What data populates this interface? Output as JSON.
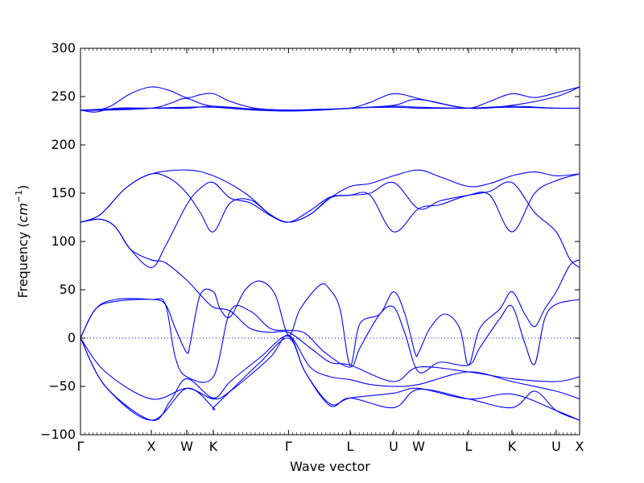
{
  "chart_data": {
    "type": "line",
    "xlabel": "Wave vector",
    "ylabel_text": "Frequency (",
    "ylabel_unit": "cm",
    "ylabel_exp": "−1",
    "ylabel_close": ")",
    "ylim": [
      -100,
      300
    ],
    "yticks": [
      -100,
      -50,
      0,
      50,
      100,
      150,
      200,
      250,
      300
    ],
    "ytick_labels": [
      "−100",
      "−50",
      "0",
      "50",
      "100",
      "150",
      "200",
      "250",
      "300"
    ],
    "xlim": [
      0,
      1
    ],
    "xticks": [
      {
        "label": "Γ",
        "x": 0.0
      },
      {
        "label": "X",
        "x": 0.1419
      },
      {
        "label": "W",
        "x": 0.2129
      },
      {
        "label": "K",
        "x": 0.2661
      },
      {
        "label": "Γ",
        "x": 0.4167
      },
      {
        "label": "L",
        "x": 0.5403
      },
      {
        "label": "U",
        "x": 0.6274
      },
      {
        "label": "W",
        "x": 0.6774
      },
      {
        "label": "L",
        "x": 0.7774
      },
      {
        "label": "K",
        "x": 0.8645
      },
      {
        "label": "U",
        "x": 0.9532
      },
      {
        "label": "X",
        "x": 1.0
      }
    ],
    "zero_line": 0,
    "line_color": "#0000ff",
    "series": [
      {
        "points": [
          [
            0,
            236
          ],
          [
            0.03,
            234
          ],
          [
            0.07,
            238
          ],
          [
            0.1419,
            238
          ],
          [
            0.2129,
            238
          ],
          [
            0.2661,
            240
          ],
          [
            0.35,
            237
          ],
          [
            0.4167,
            236
          ],
          [
            0.48,
            236
          ],
          [
            0.5403,
            238
          ],
          [
            0.6274,
            240
          ],
          [
            0.6774,
            239
          ],
          [
            0.7774,
            238
          ],
          [
            0.8645,
            240
          ],
          [
            0.9532,
            238
          ],
          [
            1,
            238
          ]
        ]
      },
      {
        "points": [
          [
            0,
            236
          ],
          [
            0.05,
            237
          ],
          [
            0.1419,
            238
          ],
          [
            0.2129,
            239
          ],
          [
            0.2661,
            239
          ],
          [
            0.35,
            236
          ],
          [
            0.4167,
            235
          ],
          [
            0.48,
            236
          ],
          [
            0.5403,
            238
          ],
          [
            0.6274,
            239
          ],
          [
            0.6774,
            238
          ],
          [
            0.7774,
            238
          ],
          [
            0.8645,
            239
          ],
          [
            0.9532,
            238
          ],
          [
            1,
            238
          ]
        ]
      },
      {
        "points": [
          [
            0,
            236
          ],
          [
            0.03,
            236
          ],
          [
            0.06,
            240
          ],
          [
            0.1,
            253
          ],
          [
            0.1419,
            260
          ],
          [
            0.18,
            256
          ],
          [
            0.2129,
            249
          ],
          [
            0.24,
            252
          ],
          [
            0.2661,
            253
          ],
          [
            0.3,
            245
          ],
          [
            0.35,
            238
          ],
          [
            0.4167,
            236
          ],
          [
            0.48,
            237
          ],
          [
            0.5403,
            238
          ],
          [
            0.58,
            244
          ],
          [
            0.6274,
            253
          ],
          [
            0.6774,
            248
          ],
          [
            0.72,
            243
          ],
          [
            0.7774,
            238
          ],
          [
            0.82,
            245
          ],
          [
            0.8645,
            253
          ],
          [
            0.91,
            249
          ],
          [
            0.9532,
            254
          ],
          [
            1,
            260
          ]
        ]
      },
      {
        "points": [
          [
            0,
            236
          ],
          [
            0.05,
            236
          ],
          [
            0.1419,
            238
          ],
          [
            0.18,
            243
          ],
          [
            0.2129,
            248
          ],
          [
            0.2661,
            240
          ],
          [
            0.4167,
            236
          ],
          [
            0.5403,
            238
          ],
          [
            0.6274,
            241
          ],
          [
            0.6774,
            247
          ],
          [
            0.7774,
            238
          ],
          [
            0.8645,
            241
          ],
          [
            0.9532,
            250
          ],
          [
            1,
            260
          ]
        ]
      },
      {
        "points": [
          [
            0,
            120
          ],
          [
            0.04,
            128
          ],
          [
            0.09,
            155
          ],
          [
            0.1419,
            170
          ],
          [
            0.2129,
            174
          ],
          [
            0.2661,
            168
          ],
          [
            0.33,
            150
          ],
          [
            0.38,
            128
          ],
          [
            0.4167,
            120
          ],
          [
            0.46,
            128
          ],
          [
            0.5,
            145
          ],
          [
            0.5403,
            157
          ],
          [
            0.58,
            160
          ],
          [
            0.6274,
            168
          ],
          [
            0.6774,
            174
          ],
          [
            0.72,
            167
          ],
          [
            0.7774,
            157
          ],
          [
            0.82,
            160
          ],
          [
            0.8645,
            168
          ],
          [
            0.91,
            172
          ],
          [
            0.9532,
            168
          ],
          [
            1,
            170
          ]
        ]
      },
      {
        "points": [
          [
            0,
            120
          ],
          [
            0.04,
            128
          ],
          [
            0.09,
            155
          ],
          [
            0.1419,
            170
          ],
          [
            0.18,
            165
          ],
          [
            0.2129,
            150
          ],
          [
            0.24,
            130
          ],
          [
            0.2661,
            110
          ],
          [
            0.3,
            140
          ],
          [
            0.34,
            143
          ],
          [
            0.38,
            128
          ],
          [
            0.4167,
            120
          ],
          [
            0.46,
            128
          ],
          [
            0.5,
            145
          ],
          [
            0.5403,
            148
          ],
          [
            0.58,
            148
          ],
          [
            0.6274,
            110
          ],
          [
            0.6774,
            134
          ],
          [
            0.72,
            138
          ],
          [
            0.7774,
            148
          ],
          [
            0.82,
            148
          ],
          [
            0.8645,
            110
          ],
          [
            0.91,
            150
          ],
          [
            0.9532,
            163
          ],
          [
            1,
            170
          ]
        ]
      },
      {
        "points": [
          [
            0,
            120
          ],
          [
            0.04,
            123
          ],
          [
            0.07,
            115
          ],
          [
            0.1,
            92
          ],
          [
            0.1419,
            73
          ],
          [
            0.17,
            95
          ],
          [
            0.2129,
            138
          ],
          [
            0.24,
            155
          ],
          [
            0.2661,
            161
          ],
          [
            0.3,
            145
          ],
          [
            0.34,
            140
          ],
          [
            0.38,
            127
          ],
          [
            0.4167,
            120
          ],
          [
            0.46,
            132
          ],
          [
            0.5,
            146
          ],
          [
            0.5403,
            148
          ],
          [
            0.58,
            150
          ],
          [
            0.6274,
            161
          ],
          [
            0.6774,
            134
          ],
          [
            0.72,
            142
          ],
          [
            0.7774,
            148
          ],
          [
            0.82,
            152
          ],
          [
            0.8645,
            161
          ],
          [
            0.91,
            130
          ],
          [
            0.9532,
            110
          ],
          [
            0.98,
            82
          ],
          [
            1,
            73
          ]
        ]
      },
      {
        "points": [
          [
            0,
            120
          ],
          [
            0.04,
            123
          ],
          [
            0.07,
            115
          ],
          [
            0.1,
            92
          ],
          [
            0.1419,
            81
          ],
          [
            0.17,
            78
          ],
          [
            0.2129,
            60
          ],
          [
            0.24,
            45
          ],
          [
            0.2661,
            32
          ],
          [
            0.3,
            28
          ],
          [
            0.34,
            10
          ],
          [
            0.38,
            6
          ],
          [
            0.4167,
            6
          ],
          [
            0.46,
            -10
          ],
          [
            0.5,
            -25
          ],
          [
            0.5403,
            -28
          ],
          [
            0.6274,
            -45
          ],
          [
            0.6774,
            -30
          ],
          [
            0.7774,
            -35
          ],
          [
            0.8645,
            -42
          ],
          [
            0.9532,
            -45
          ],
          [
            1,
            -40
          ]
        ]
      },
      {
        "points": [
          [
            0,
            0
          ],
          [
            0.03,
            30
          ],
          [
            0.07,
            38
          ],
          [
            0.1419,
            40
          ],
          [
            0.17,
            35
          ],
          [
            0.19,
            10
          ],
          [
            0.2129,
            -15
          ],
          [
            0.22,
            -5
          ],
          [
            0.24,
            45
          ],
          [
            0.2661,
            48
          ],
          [
            0.28,
            30
          ],
          [
            0.3,
            22
          ],
          [
            0.33,
            50
          ],
          [
            0.36,
            59
          ],
          [
            0.39,
            45
          ],
          [
            0.4167,
            3
          ],
          [
            0.44,
            30
          ],
          [
            0.48,
            55
          ],
          [
            0.5,
            50
          ],
          [
            0.52,
            30
          ],
          [
            0.5403,
            -28
          ],
          [
            0.56,
            15
          ],
          [
            0.6,
            25
          ],
          [
            0.6274,
            48
          ],
          [
            0.65,
            25
          ],
          [
            0.67,
            -15
          ],
          [
            0.6774,
            -15
          ],
          [
            0.7,
            10
          ],
          [
            0.73,
            25
          ],
          [
            0.76,
            10
          ],
          [
            0.7774,
            -28
          ],
          [
            0.8,
            10
          ],
          [
            0.84,
            30
          ],
          [
            0.8645,
            48
          ],
          [
            0.89,
            25
          ],
          [
            0.91,
            12
          ],
          [
            0.93,
            30
          ],
          [
            0.9532,
            48
          ],
          [
            0.98,
            75
          ],
          [
            1,
            81
          ]
        ]
      },
      {
        "points": [
          [
            0,
            0
          ],
          [
            0.03,
            30
          ],
          [
            0.07,
            40
          ],
          [
            0.1419,
            40
          ],
          [
            0.17,
            35
          ],
          [
            0.19,
            -20
          ],
          [
            0.2129,
            -40
          ],
          [
            0.2661,
            -40
          ],
          [
            0.3,
            28
          ],
          [
            0.34,
            28
          ],
          [
            0.38,
            10
          ],
          [
            0.4167,
            8
          ],
          [
            0.45,
            5
          ],
          [
            0.49,
            -15
          ],
          [
            0.5403,
            -30
          ],
          [
            0.56,
            -10
          ],
          [
            0.6,
            25
          ],
          [
            0.6274,
            32
          ],
          [
            0.65,
            5
          ],
          [
            0.6774,
            -35
          ],
          [
            0.72,
            -25
          ],
          [
            0.7774,
            -28
          ],
          [
            0.8,
            -10
          ],
          [
            0.84,
            20
          ],
          [
            0.8645,
            33
          ],
          [
            0.89,
            -5
          ],
          [
            0.91,
            -27
          ],
          [
            0.93,
            20
          ],
          [
            0.9532,
            35
          ],
          [
            1,
            40
          ]
        ]
      },
      {
        "points": [
          [
            0,
            0
          ],
          [
            0.05,
            -35
          ],
          [
            0.1419,
            -63
          ],
          [
            0.2129,
            -52
          ],
          [
            0.2661,
            -63
          ],
          [
            0.3,
            -55
          ],
          [
            0.38,
            -20
          ],
          [
            0.4167,
            3
          ],
          [
            0.46,
            -30
          ],
          [
            0.5,
            -40
          ],
          [
            0.5403,
            -43
          ],
          [
            0.58,
            -48
          ],
          [
            0.6274,
            -50
          ],
          [
            0.6774,
            -48
          ],
          [
            0.7774,
            -35
          ],
          [
            0.8645,
            -45
          ],
          [
            0.9532,
            -55
          ],
          [
            1,
            -63
          ]
        ]
      },
      {
        "points": [
          [
            0,
            0
          ],
          [
            0.05,
            -50
          ],
          [
            0.1419,
            -85
          ],
          [
            0.18,
            -65
          ],
          [
            0.2129,
            -42
          ],
          [
            0.2661,
            -62
          ],
          [
            0.3,
            -45
          ],
          [
            0.36,
            -20
          ],
          [
            0.4167,
            2
          ],
          [
            0.45,
            -35
          ],
          [
            0.5,
            -68
          ],
          [
            0.5403,
            -62
          ],
          [
            0.6274,
            -57
          ],
          [
            0.6774,
            -52
          ],
          [
            0.7774,
            -63
          ],
          [
            0.8645,
            -58
          ],
          [
            0.9532,
            -75
          ],
          [
            1,
            -85
          ]
        ]
      },
      {
        "points": [
          [
            0,
            0
          ],
          [
            0.05,
            -50
          ],
          [
            0.1419,
            -85
          ],
          [
            0.2129,
            -52
          ],
          [
            0.2661,
            -72
          ],
          [
            0.2661,
            -72
          ],
          [
            0.3,
            -55
          ],
          [
            0.36,
            -25
          ],
          [
            0.4167,
            0
          ],
          [
            0.45,
            -35
          ],
          [
            0.5,
            -70
          ],
          [
            0.5403,
            -62
          ],
          [
            0.6274,
            -72
          ],
          [
            0.6774,
            -53
          ],
          [
            0.7774,
            -63
          ],
          [
            0.8645,
            -72
          ],
          [
            0.91,
            -55
          ],
          [
            0.9532,
            -75
          ],
          [
            1,
            -85
          ]
        ]
      }
    ]
  }
}
